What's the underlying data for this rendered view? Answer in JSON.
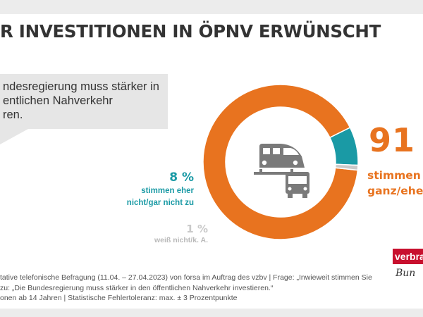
{
  "title": "R INVESTITIONEN IN ÖPNV ERWÜNSCHT",
  "statement": {
    "lines": [
      "ndesregierung muss stärker in",
      "entlichen Nahverkehr",
      "ren."
    ]
  },
  "chart_data": {
    "type": "pie",
    "style": "donut",
    "slices": [
      {
        "value": 91,
        "percent_text": "91",
        "label_lines": [
          "stimmen",
          "ganz/ehe"
        ],
        "color": "#e8731f"
      },
      {
        "value": 8,
        "percent_text": "8 %",
        "label_lines": [
          "stimmen eher",
          "nicht/gar nicht zu"
        ],
        "color": "#1a9aa5"
      },
      {
        "value": 1,
        "percent_text": "1 %",
        "label_lines": [
          "weiß nicht/k. A."
        ],
        "color": "#c9c9c9"
      }
    ],
    "center_icons": [
      "train-icon",
      "bus-icon"
    ]
  },
  "source_lines": [
    "tative telefonische Befragung (11.04. – 27.04.2023) von forsa im Auftrag des vzbv | Frage: „Inwieweit stimmen Sie",
    "zu: „Die Bundesregierung muss stärker in den öffentlichen Nahverkehr investieren.“",
    "onen ab 14 Jahren | Statistische Fehlertoleranz: max. ± 3 Prozentpunkte"
  ],
  "logo": {
    "top": "verbra",
    "bottom": "Bun"
  },
  "colors": {
    "accent": "#e8731f",
    "teal": "#1a9aa5",
    "grey": "#c9c9c9",
    "brand_red": "#c8102e"
  }
}
